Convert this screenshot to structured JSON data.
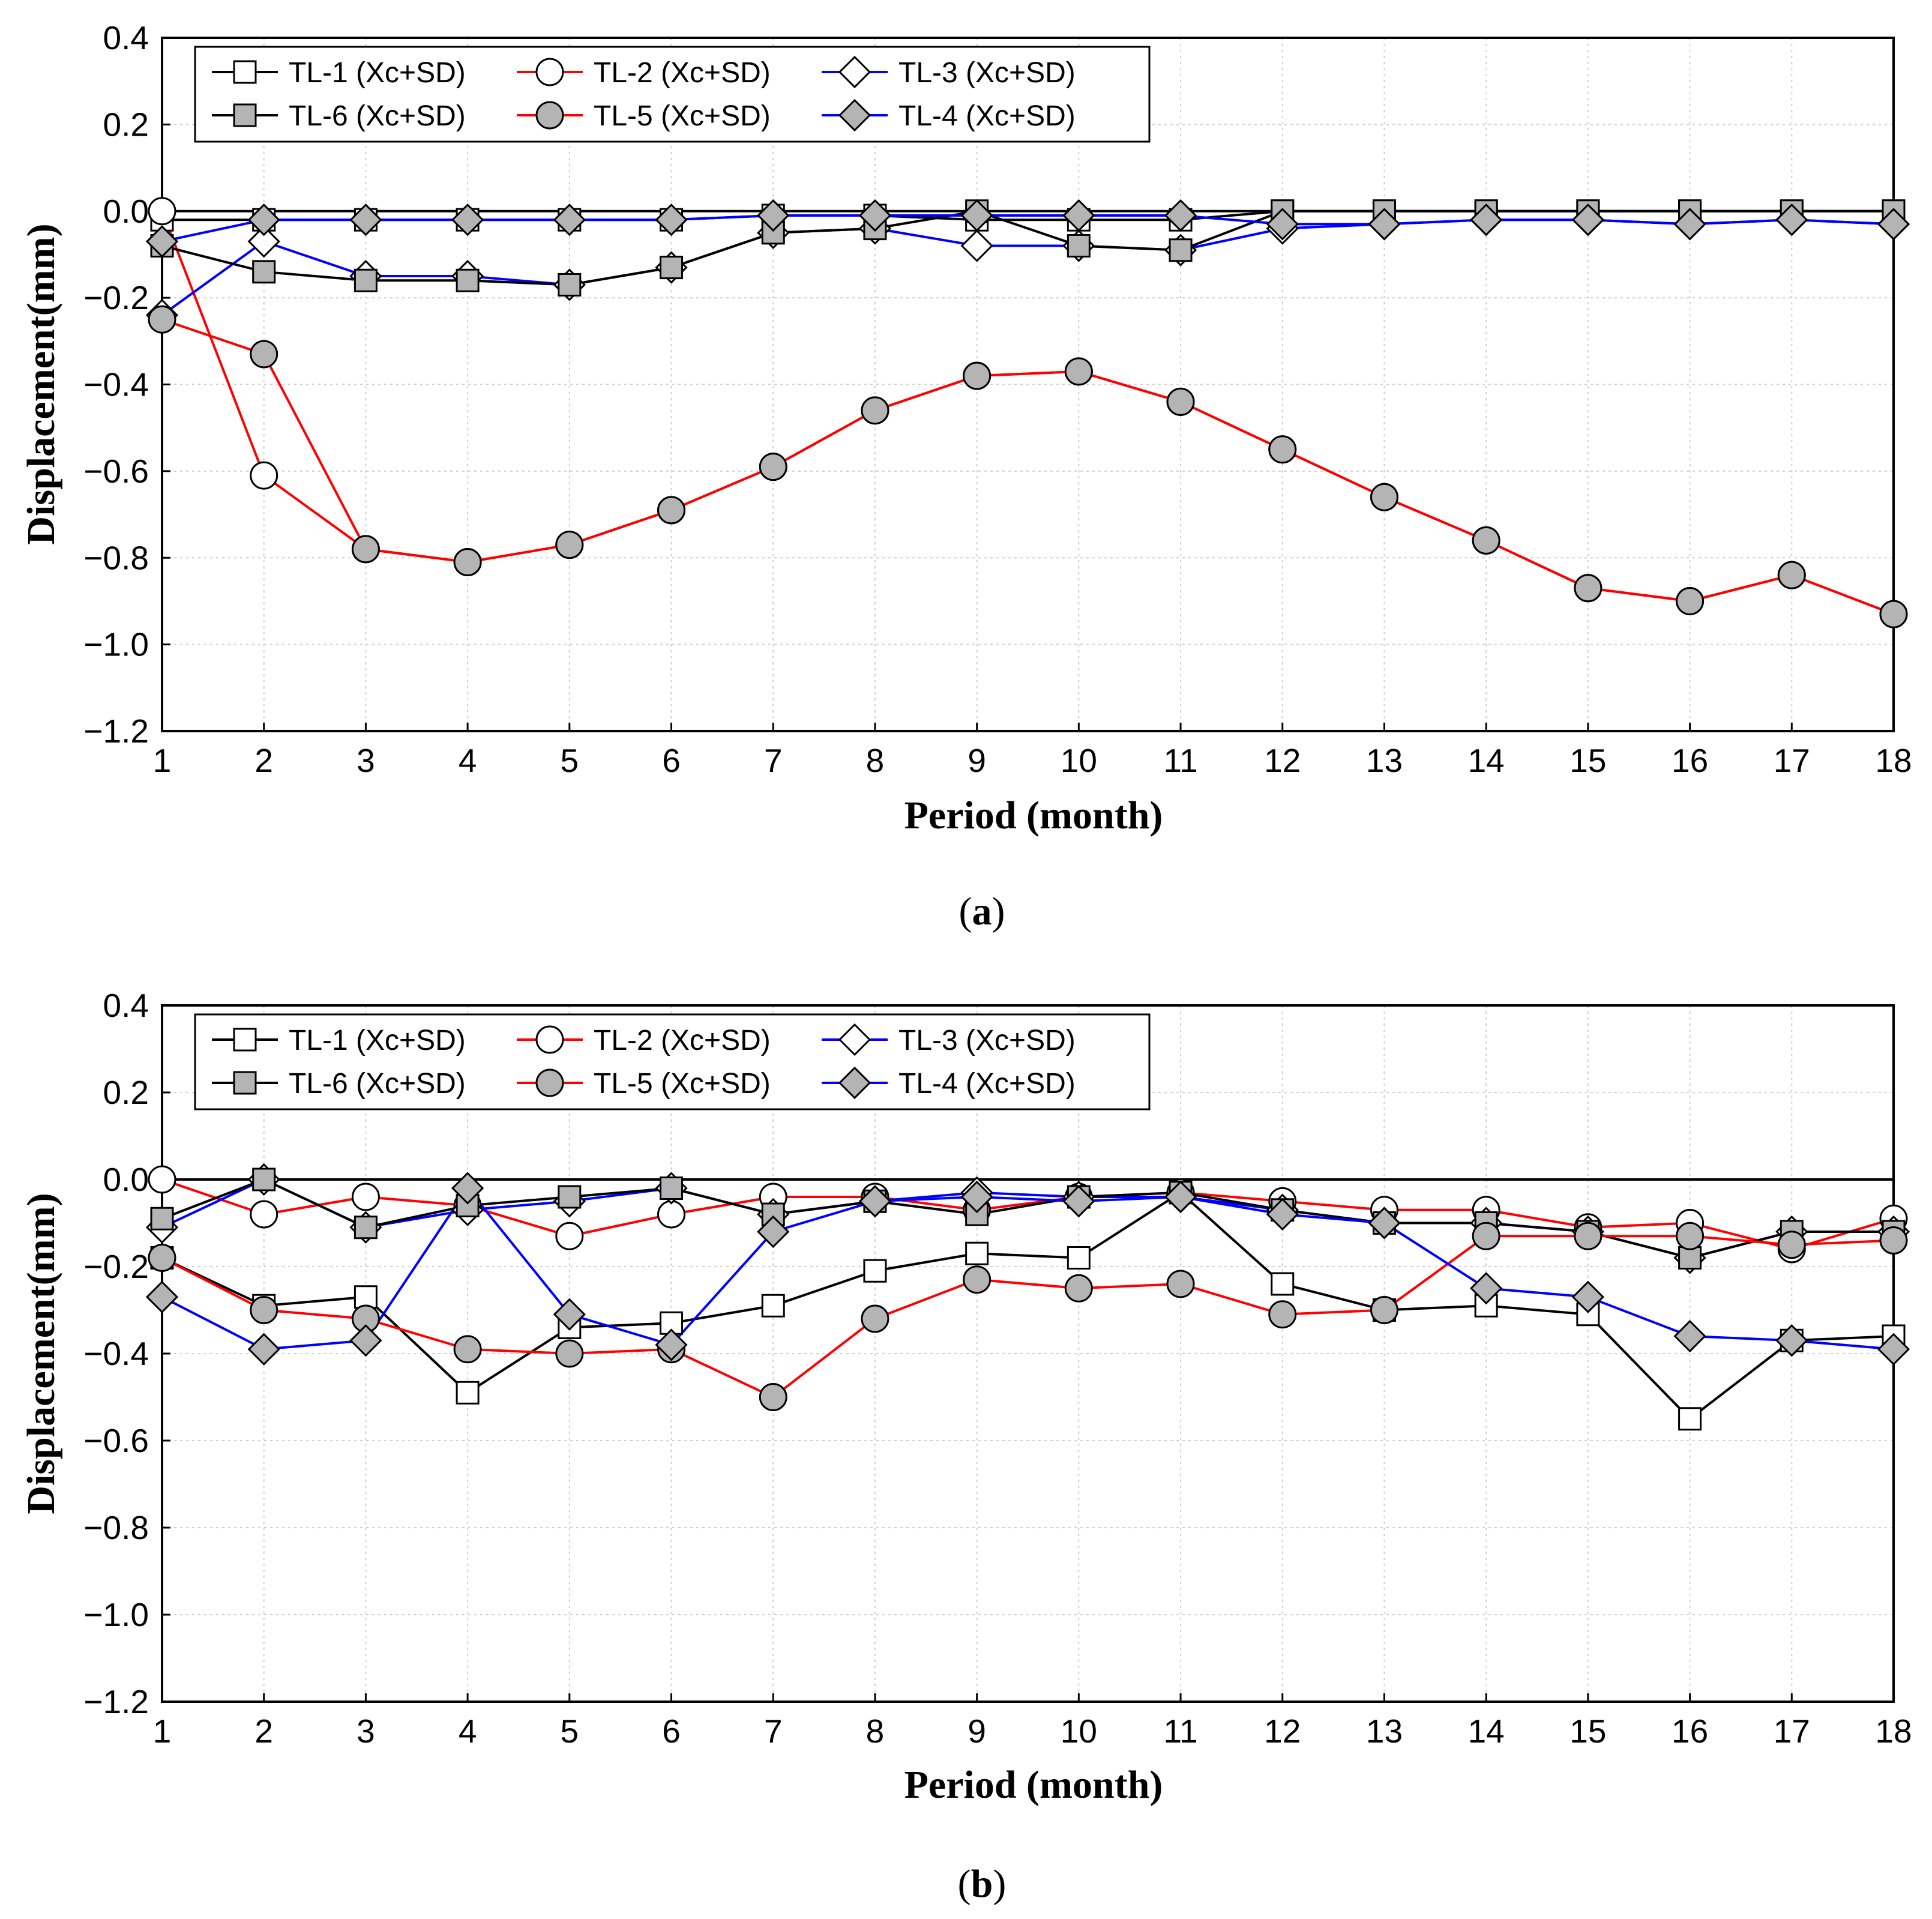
{
  "chart_data": [
    {
      "type": "line",
      "panel_label": "a",
      "xlabel": "Period (month)",
      "ylabel": "Displacement(mm)",
      "xlim": [
        1,
        18
      ],
      "ylim": [
        -1.2,
        0.4
      ],
      "x": [
        1,
        2,
        3,
        4,
        5,
        6,
        7,
        8,
        9,
        10,
        11,
        12,
        13,
        14,
        15,
        16,
        17,
        18
      ],
      "xticks": [
        "1",
        "2",
        "3",
        "4",
        "5",
        "6",
        "7",
        "8",
        "9",
        "10",
        "11",
        "12",
        "13",
        "14",
        "15",
        "16",
        "17",
        "18"
      ],
      "yticks": [
        "0.4",
        "0.2",
        "0.0",
        "−0.2",
        "−0.4",
        "−0.6",
        "−0.8",
        "−1.0",
        "−1.2"
      ],
      "legend_position": "top-left",
      "series": [
        {
          "name": "TL-1 (Xc+SD)",
          "color": "#000000",
          "marker": "square-open",
          "values": [
            -0.02,
            -0.02,
            -0.02,
            -0.02,
            -0.02,
            -0.02,
            -0.01,
            -0.01,
            -0.02,
            -0.02,
            -0.02,
            0.0,
            0.0,
            0.0,
            0.0,
            0.0,
            0.0,
            0.0
          ]
        },
        {
          "name": "TL-2 (Xc+SD)",
          "color": "#ff0000",
          "marker": "circle-open",
          "values": [
            0.0,
            -0.61,
            -0.78,
            -0.81,
            -0.77,
            -0.69,
            -0.59,
            -0.46,
            -0.38,
            -0.37,
            -0.44,
            -0.55,
            -0.66,
            -0.76,
            -0.87,
            -0.9,
            -0.84,
            -0.93
          ]
        },
        {
          "name": "TL-3 (Xc+SD)",
          "color": "#0000ff",
          "marker": "diamond-open",
          "values": [
            -0.24,
            -0.07,
            -0.15,
            -0.15,
            -0.17,
            -0.13,
            -0.05,
            -0.04,
            -0.08,
            -0.08,
            -0.09,
            -0.04,
            -0.03,
            -0.02,
            -0.02,
            -0.03,
            -0.02,
            -0.03
          ]
        },
        {
          "name": "TL-6 (Xc+SD)",
          "color": "#000000",
          "marker": "square-filled",
          "values": [
            -0.08,
            -0.14,
            -0.16,
            -0.16,
            -0.17,
            -0.13,
            -0.05,
            -0.04,
            0.0,
            -0.08,
            -0.09,
            0.0,
            0.0,
            0.0,
            0.0,
            0.0,
            0.0,
            0.0
          ]
        },
        {
          "name": "TL-5 (Xc+SD)",
          "color": "#ff0000",
          "marker": "circle-filled",
          "values": [
            -0.25,
            -0.33,
            -0.78,
            -0.81,
            -0.77,
            -0.69,
            -0.59,
            -0.46,
            -0.38,
            -0.37,
            -0.44,
            -0.55,
            -0.66,
            -0.76,
            -0.87,
            -0.9,
            -0.84,
            -0.93
          ]
        },
        {
          "name": "TL-4 (Xc+SD)",
          "color": "#0000ff",
          "marker": "diamond-filled",
          "values": [
            -0.07,
            -0.02,
            -0.02,
            -0.02,
            -0.02,
            -0.02,
            -0.01,
            -0.01,
            -0.01,
            -0.01,
            -0.01,
            -0.03,
            -0.03,
            -0.02,
            -0.02,
            -0.03,
            -0.02,
            -0.03
          ]
        }
      ]
    },
    {
      "type": "line",
      "panel_label": "b",
      "xlabel": "Period (month)",
      "ylabel": "Displacement(mm)",
      "xlim": [
        1,
        18
      ],
      "ylim": [
        -1.2,
        0.4
      ],
      "x": [
        1,
        2,
        3,
        4,
        5,
        6,
        7,
        8,
        9,
        10,
        11,
        12,
        13,
        14,
        15,
        16,
        17,
        18
      ],
      "xticks": [
        "1",
        "2",
        "3",
        "4",
        "5",
        "6",
        "7",
        "8",
        "9",
        "10",
        "11",
        "12",
        "13",
        "14",
        "15",
        "16",
        "17",
        "18"
      ],
      "yticks": [
        "0.4",
        "0.2",
        "0.0",
        "−0.2",
        "−0.4",
        "−0.6",
        "−0.8",
        "−1.0",
        "−1.2"
      ],
      "legend_position": "top-left",
      "series": [
        {
          "name": "TL-1 (Xc+SD)",
          "color": "#000000",
          "marker": "square-open",
          "values": [
            -0.18,
            -0.29,
            -0.27,
            -0.49,
            -0.34,
            -0.33,
            -0.29,
            -0.21,
            -0.17,
            -0.18,
            -0.03,
            -0.24,
            -0.3,
            -0.29,
            -0.31,
            -0.55,
            -0.37,
            -0.36
          ]
        },
        {
          "name": "TL-2 (Xc+SD)",
          "color": "#ff0000",
          "marker": "circle-open",
          "values": [
            0.0,
            -0.08,
            -0.04,
            -0.06,
            -0.13,
            -0.08,
            -0.04,
            -0.04,
            -0.07,
            -0.04,
            -0.03,
            -0.05,
            -0.07,
            -0.07,
            -0.11,
            -0.1,
            -0.16,
            -0.09
          ]
        },
        {
          "name": "TL-3 (Xc+SD)",
          "color": "#0000ff",
          "marker": "diamond-open",
          "values": [
            -0.11,
            0.0,
            -0.11,
            -0.07,
            -0.05,
            -0.02,
            -0.08,
            -0.05,
            -0.03,
            -0.04,
            -0.04,
            -0.07,
            -0.1,
            -0.1,
            -0.12,
            -0.18,
            -0.12,
            -0.12
          ]
        },
        {
          "name": "TL-6 (Xc+SD)",
          "color": "#000000",
          "marker": "square-filled",
          "values": [
            -0.09,
            0.0,
            -0.11,
            -0.06,
            -0.04,
            -0.02,
            -0.08,
            -0.05,
            -0.08,
            -0.04,
            -0.03,
            -0.07,
            -0.1,
            -0.1,
            -0.12,
            -0.18,
            -0.12,
            -0.12
          ]
        },
        {
          "name": "TL-5 (Xc+SD)",
          "color": "#ff0000",
          "marker": "circle-filled",
          "values": [
            -0.18,
            -0.3,
            -0.32,
            -0.39,
            -0.4,
            -0.39,
            -0.5,
            -0.32,
            -0.23,
            -0.25,
            -0.24,
            -0.31,
            -0.3,
            -0.13,
            -0.13,
            -0.13,
            -0.15,
            -0.14
          ]
        },
        {
          "name": "TL-4 (Xc+SD)",
          "color": "#0000ff",
          "marker": "diamond-filled",
          "values": [
            -0.27,
            -0.39,
            -0.37,
            -0.02,
            -0.31,
            -0.38,
            -0.12,
            -0.05,
            -0.04,
            -0.05,
            -0.04,
            -0.08,
            -0.1,
            -0.25,
            -0.27,
            -0.36,
            -0.37,
            -0.39
          ]
        }
      ]
    }
  ]
}
